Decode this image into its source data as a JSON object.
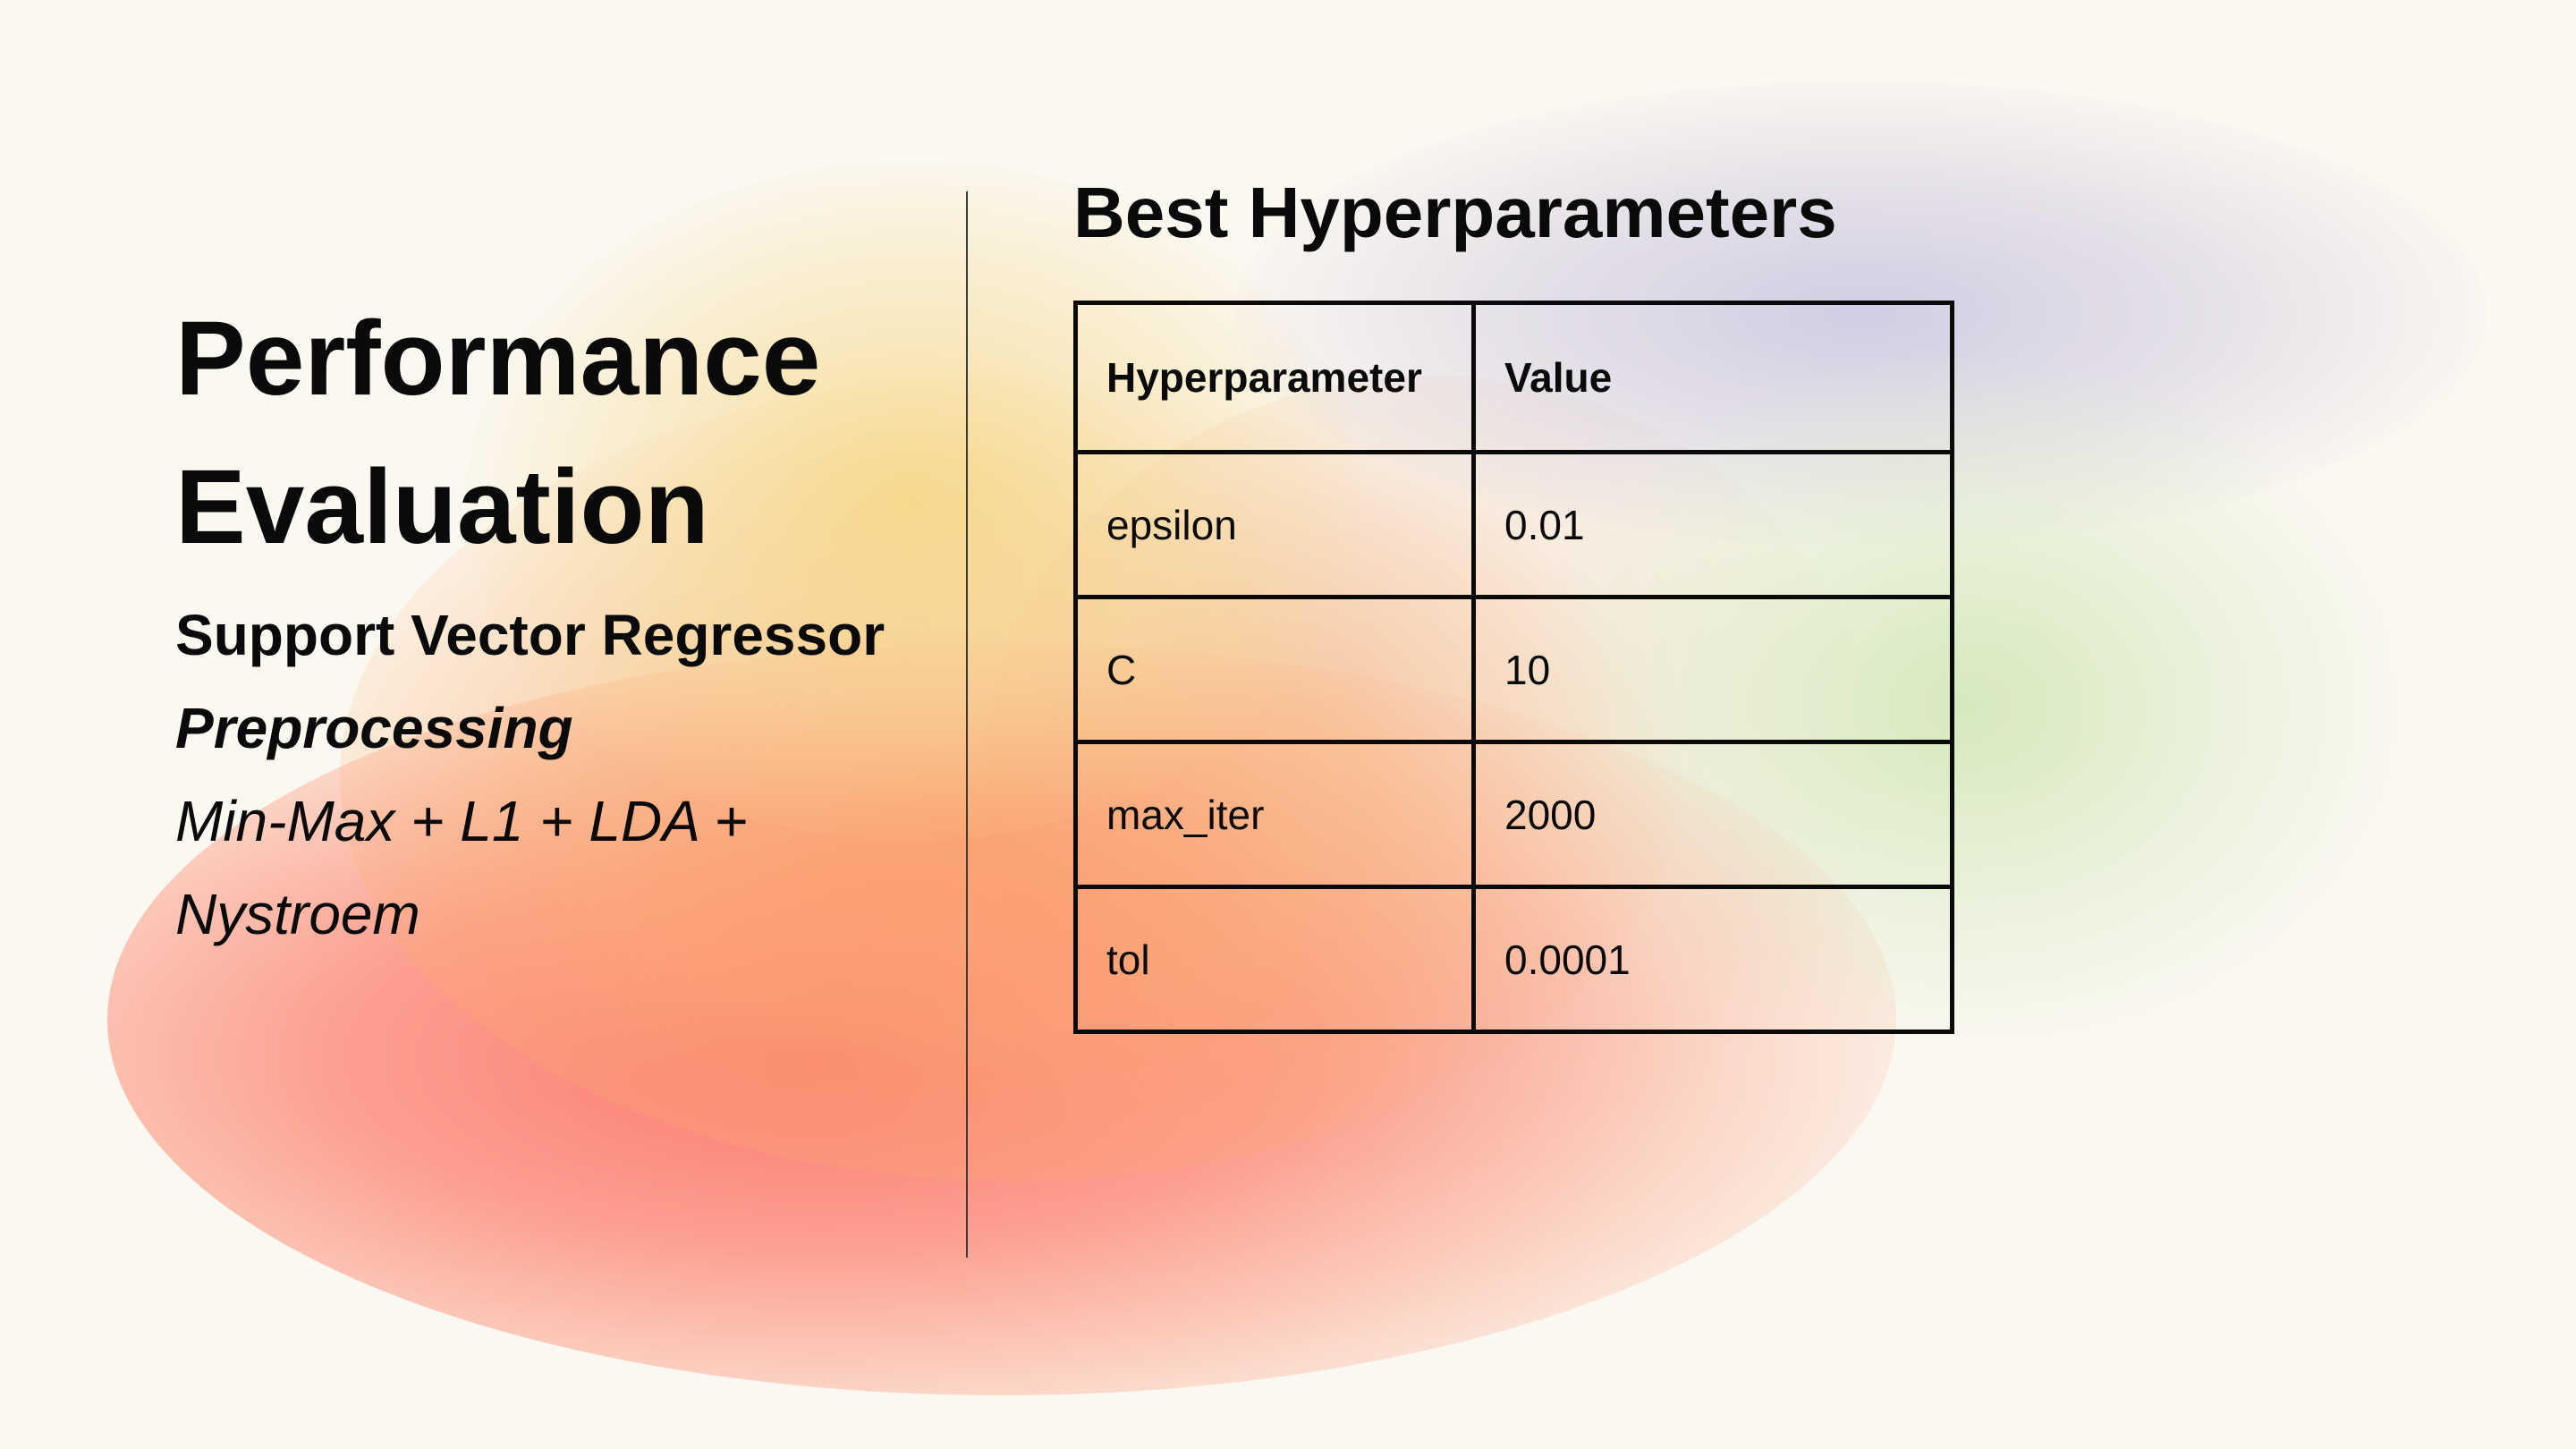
{
  "slide": {
    "title_line1": "Performance",
    "title_line2": "Evaluation",
    "model": "Support Vector Regressor",
    "preprocessing_heading": "Preprocessing",
    "preprocessing_line1": "Min-Max + L1 + LDA +",
    "preprocessing_line2": "Nystroem"
  },
  "table": {
    "title": "Best Hyperparameters",
    "headers": [
      "Hyperparameter",
      "Value"
    ],
    "rows": [
      {
        "name": "epsilon",
        "value": "0.01"
      },
      {
        "name": "C",
        "value": "10"
      },
      {
        "name": "max_iter",
        "value": "2000"
      },
      {
        "name": "tol",
        "value": "0.0001"
      }
    ]
  },
  "colors": {
    "background": "#fbf8f1",
    "text": "#0a0a0a",
    "gradient_red": "#fc7069",
    "gradient_yellow": "#f6d682",
    "gradient_lavender": "#cdc8e1",
    "gradient_green": "#d4e8ba"
  }
}
